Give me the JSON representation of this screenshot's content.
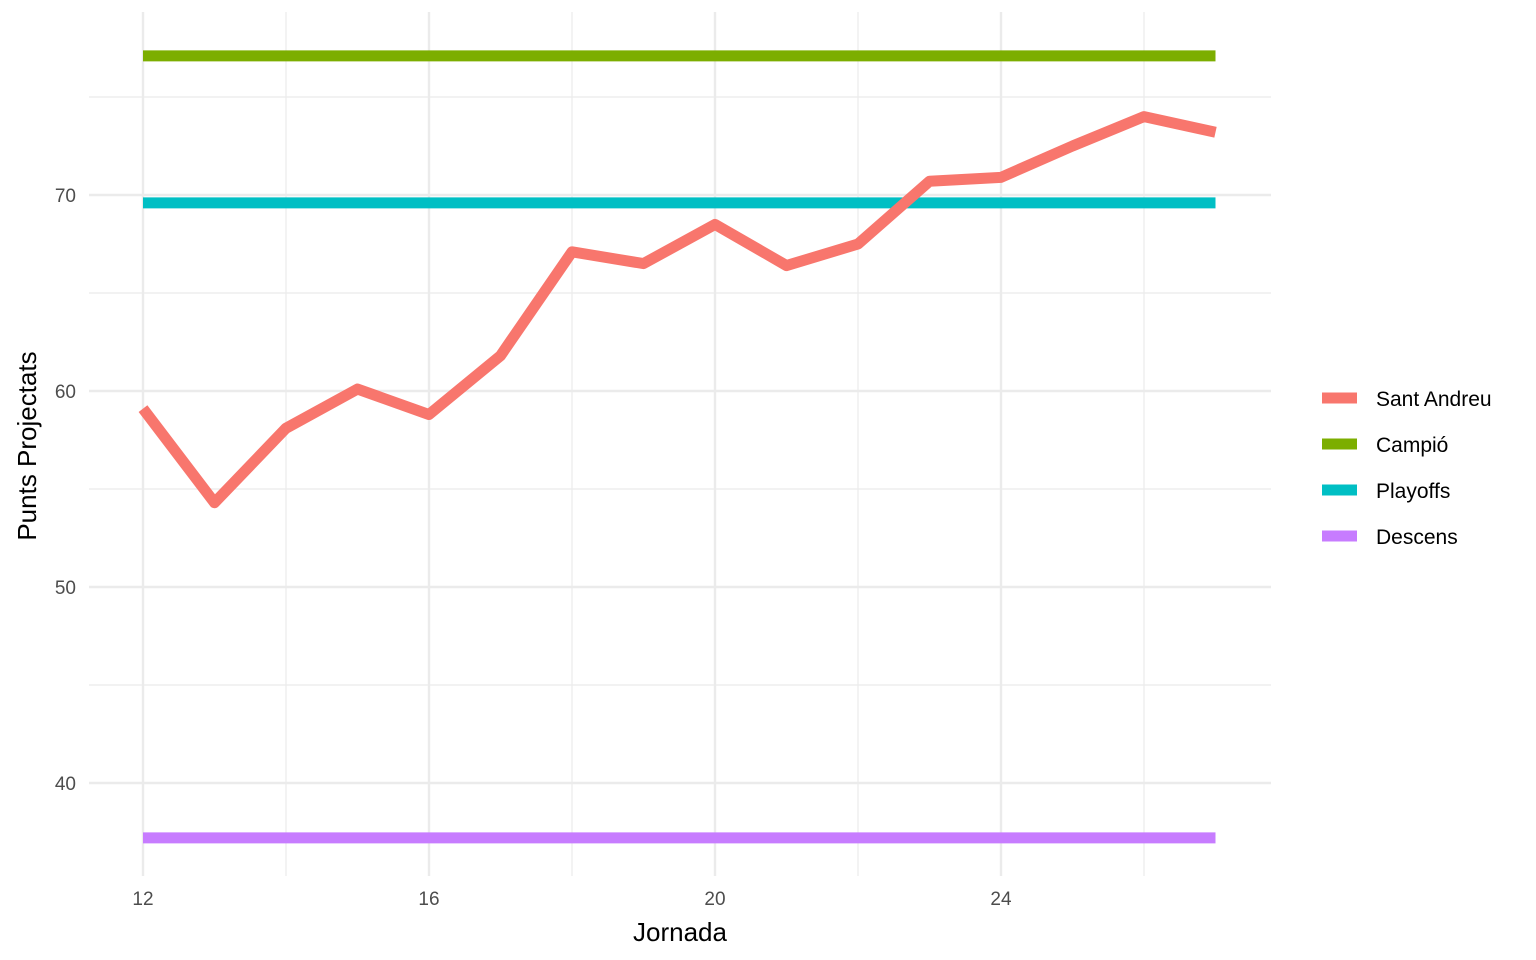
{
  "chart_data": {
    "type": "line",
    "title": "",
    "xlabel": "Jornada",
    "ylabel": "Punts Projectats",
    "xlim": [
      12,
      27
    ],
    "ylim": [
      35.3,
      77.8
    ],
    "x_ticks": [
      12,
      16,
      20,
      24
    ],
    "y_ticks": [
      40,
      50,
      60,
      70
    ],
    "grid": true,
    "legend_position": "right",
    "series": [
      {
        "name": "Sant Andreu",
        "color": "#F8766D",
        "x": [
          12,
          13,
          14,
          15,
          16,
          17,
          18,
          19,
          20,
          21,
          22,
          23,
          24,
          25,
          26,
          27
        ],
        "y": [
          59.1,
          54.3,
          58.1,
          60.1,
          58.8,
          61.8,
          67.1,
          66.5,
          68.5,
          66.4,
          67.5,
          70.7,
          70.9,
          72.5,
          74.0,
          73.2
        ]
      },
      {
        "name": "Campió",
        "color": "#7CAE00",
        "x": [
          12,
          27
        ],
        "y": [
          77.1,
          77.1
        ]
      },
      {
        "name": "Playoffs",
        "color": "#00BFC4",
        "x": [
          12,
          27
        ],
        "y": [
          69.6,
          69.6
        ]
      },
      {
        "name": "Descens",
        "color": "#C77CFF",
        "x": [
          12,
          27
        ],
        "y": [
          37.2,
          37.2
        ]
      }
    ]
  }
}
